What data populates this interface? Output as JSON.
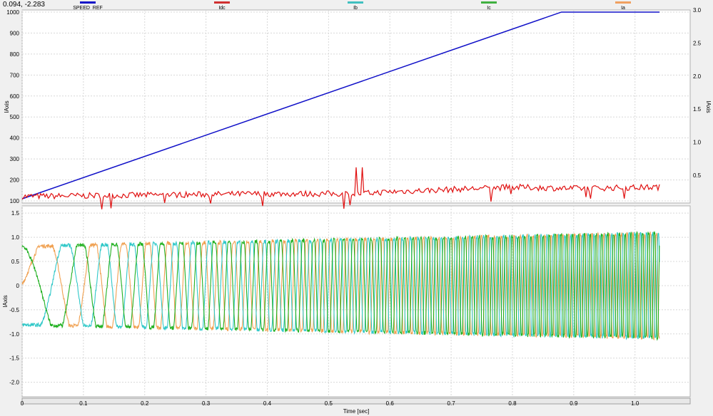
{
  "readout": "0.094, -2.283",
  "colors": {
    "SPEED_REF": "#1010c8",
    "Idc": "#e01010",
    "Ib": "#30c8c8",
    "Ic": "#20b020",
    "Ia": "#f0a050"
  },
  "legend": [
    {
      "name": "SPEED_REF",
      "color": "#1010c8"
    },
    {
      "name": "Idc",
      "color": "#d03030"
    },
    {
      "name": "Ib",
      "color": "#40c0c0"
    },
    {
      "name": "Ic",
      "color": "#40b040"
    },
    {
      "name": "Ia",
      "color": "#f0a060"
    }
  ],
  "chart_data": [
    {
      "type": "line",
      "xlabel": "Time [sec]",
      "ylabel": "IAxis",
      "y2label": "IAxis",
      "xlim": [
        0,
        1.09
      ],
      "ylim": [
        90,
        1010
      ],
      "y2lim": [
        0.08,
        3.0
      ],
      "xticks": [
        "0",
        "0.1",
        "0.2",
        "0.3",
        "0.4",
        "0.5",
        "0.6",
        "0.7",
        "0.8",
        "0.9",
        "1.0"
      ],
      "yticks": [
        "100",
        "200",
        "300",
        "400",
        "500",
        "600",
        "700",
        "800",
        "900",
        "1000"
      ],
      "y2ticks": [
        "0.5",
        "1.0",
        "1.5",
        "2.0",
        "2.5",
        "3.0"
      ],
      "grid": true,
      "series": [
        {
          "name": "SPEED_REF",
          "axis": "left",
          "x": [
            0,
            0.88,
            1.04
          ],
          "y": [
            110,
            1000,
            1000
          ]
        },
        {
          "name": "Idc",
          "axis": "right",
          "x": [
            0,
            0.2,
            0.4,
            0.55,
            0.6,
            0.8,
            0.9,
            1.04
          ],
          "y": [
            0.18,
            0.2,
            0.22,
            0.22,
            0.25,
            0.32,
            0.3,
            0.32
          ],
          "spikes": [
            {
              "x": 0.545,
              "y": 0.62
            },
            {
              "x": 0.555,
              "y": 0.62
            }
          ]
        }
      ]
    },
    {
      "type": "line",
      "xlabel": "Time [sec]",
      "ylabel": "IAxis",
      "xlim": [
        0,
        1.09
      ],
      "ylim": [
        -2.3,
        1.65
      ],
      "xticks": [
        "0",
        "0.1",
        "0.2",
        "0.3",
        "0.4",
        "0.5",
        "0.6",
        "0.7",
        "0.8",
        "0.9",
        "1.0"
      ],
      "yticks": [
        "-2.0",
        "-1.5",
        "-1.0",
        "-0.5",
        "0",
        "0.5",
        "1.0",
        "1.5"
      ],
      "grid": true,
      "series": [
        {
          "name": "Ia",
          "amplitude_start": 0.9,
          "amplitude_end": 1.2,
          "phase_deg": 0
        },
        {
          "name": "Ib",
          "amplitude_start": 0.9,
          "amplitude_end": 1.2,
          "phase_deg": -120
        },
        {
          "name": "Ic",
          "amplitude_start": 0.9,
          "amplitude_end": 1.2,
          "phase_deg": 120
        }
      ],
      "frequency_hz": {
        "start": 4,
        "end": 105
      },
      "x_end": 1.04
    }
  ]
}
